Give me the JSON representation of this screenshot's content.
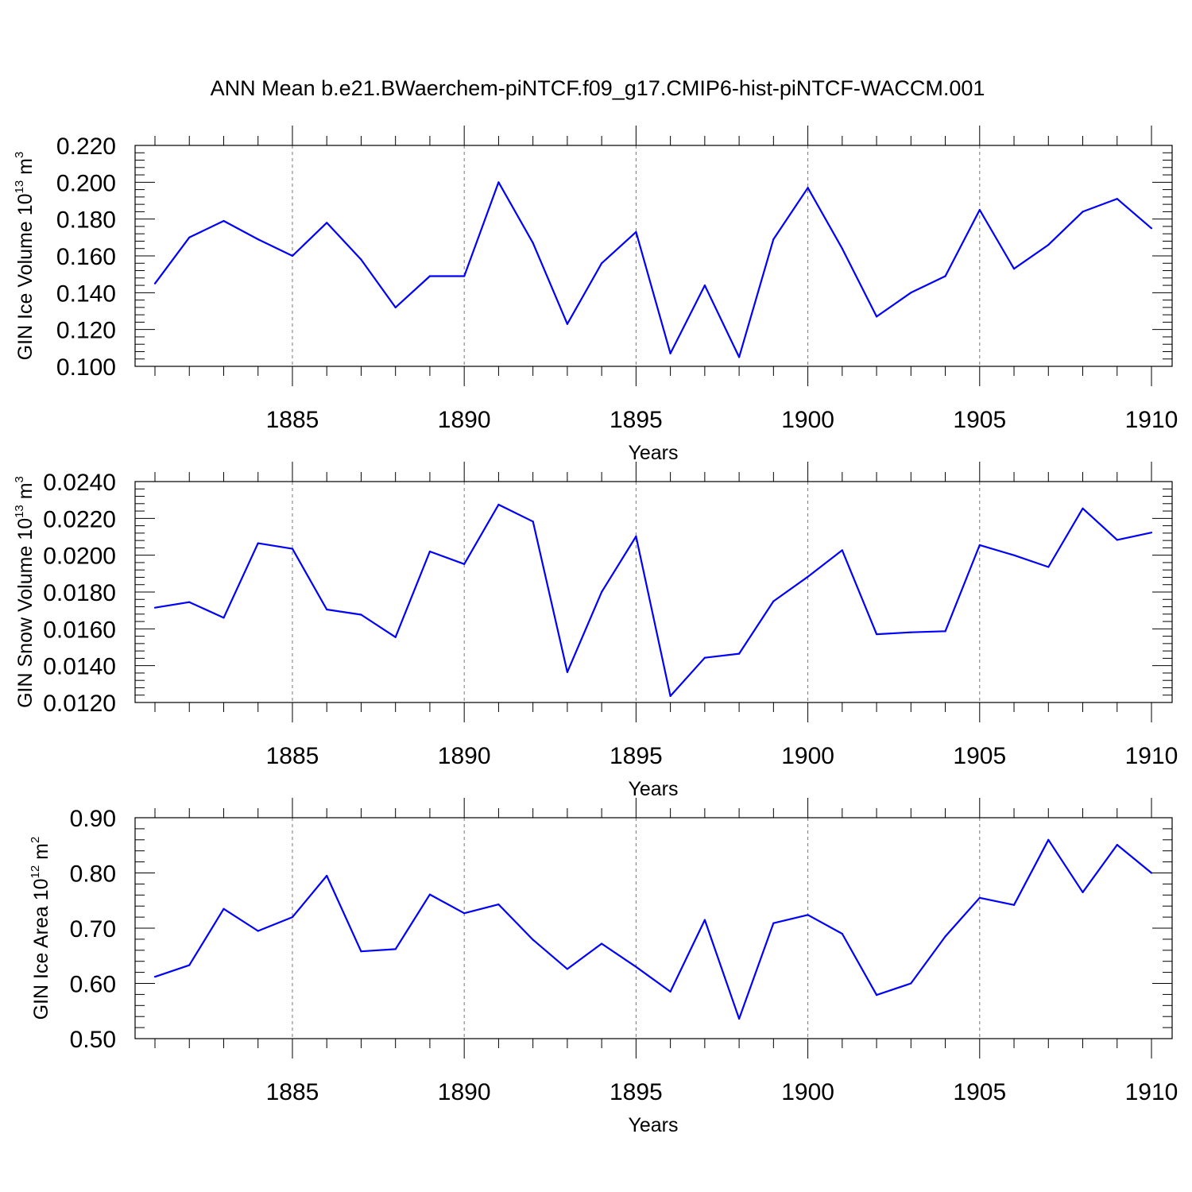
{
  "title": "ANN Mean b.e21.BWaerchem-piNTCF.f09_g17.CMIP6-hist-piNTCF-WACCM.001",
  "colors": {
    "line": "#0000ff",
    "grid": "#777777",
    "axis": "#000000"
  },
  "chart_data": [
    {
      "type": "line",
      "ylabel_text": "GIN Ice Volume 10",
      "ylabel_exp": "13",
      "ylabel_unit": " m",
      "ylabel_unit_exp": "3",
      "xlabel": "Years",
      "xlim": [
        1881,
        1910
      ],
      "ylim": [
        0.1,
        0.22
      ],
      "yticks": [
        0.1,
        0.12,
        0.14,
        0.16,
        0.18,
        0.2,
        0.22
      ],
      "ytick_labels": [
        "0.100",
        "0.120",
        "0.140",
        "0.160",
        "0.180",
        "0.200",
        "0.220"
      ],
      "xticks": [
        1885,
        1890,
        1895,
        1900,
        1905,
        1910
      ],
      "xtick_labels": [
        "1885",
        "1890",
        "1895",
        "1900",
        "1905",
        "1910"
      ],
      "grid": "vertical dashed at labeled years",
      "x": [
        1881,
        1882,
        1883,
        1884,
        1885,
        1886,
        1887,
        1888,
        1889,
        1890,
        1891,
        1892,
        1893,
        1894,
        1895,
        1896,
        1897,
        1898,
        1899,
        1900,
        1901,
        1902,
        1903,
        1904,
        1905,
        1906,
        1907,
        1908,
        1909,
        1910
      ],
      "y": [
        0.145,
        0.17,
        0.179,
        0.169,
        0.16,
        0.178,
        0.158,
        0.132,
        0.149,
        0.149,
        0.2,
        0.167,
        0.123,
        0.156,
        0.173,
        0.107,
        0.144,
        0.105,
        0.169,
        0.197,
        0.164,
        0.127,
        0.14,
        0.149,
        0.185,
        0.153,
        0.166,
        0.184,
        0.191,
        0.175
      ]
    },
    {
      "type": "line",
      "ylabel_text": "GIN Snow Volume 10",
      "ylabel_exp": "13",
      "ylabel_unit": " m",
      "ylabel_unit_exp": "3",
      "xlabel": "Years",
      "xlim": [
        1881,
        1910
      ],
      "ylim": [
        0.012,
        0.024
      ],
      "yticks": [
        0.012,
        0.014,
        0.016,
        0.018,
        0.02,
        0.022,
        0.024
      ],
      "ytick_labels": [
        "0.0120",
        "0.0140",
        "0.0160",
        "0.0180",
        "0.0200",
        "0.0220",
        "0.0240"
      ],
      "xticks": [
        1885,
        1890,
        1895,
        1900,
        1905,
        1910
      ],
      "xtick_labels": [
        "1885",
        "1890",
        "1895",
        "1900",
        "1905",
        "1910"
      ],
      "grid": "vertical dashed at labeled years",
      "x": [
        1881,
        1882,
        1883,
        1884,
        1885,
        1886,
        1887,
        1888,
        1889,
        1890,
        1891,
        1892,
        1893,
        1894,
        1895,
        1896,
        1897,
        1898,
        1899,
        1900,
        1901,
        1902,
        1903,
        1904,
        1905,
        1906,
        1907,
        1908,
        1909,
        1910
      ],
      "y": [
        0.01715,
        0.01745,
        0.0166,
        0.02065,
        0.02035,
        0.01705,
        0.01677,
        0.01555,
        0.0202,
        0.01952,
        0.02275,
        0.02183,
        0.01365,
        0.018,
        0.02102,
        0.01235,
        0.01443,
        0.01465,
        0.0175,
        0.01883,
        0.02027,
        0.01571,
        0.01581,
        0.01587,
        0.02055,
        0.02,
        0.01936,
        0.02254,
        0.02083,
        0.02123
      ]
    },
    {
      "type": "line",
      "ylabel_text": "GIN Ice Area 10",
      "ylabel_exp": "12",
      "ylabel_unit": " m",
      "ylabel_unit_exp": "2",
      "xlabel": "Years",
      "xlim": [
        1881,
        1910
      ],
      "ylim": [
        0.5,
        0.9
      ],
      "yticks": [
        0.5,
        0.6,
        0.7,
        0.8,
        0.9
      ],
      "ytick_labels": [
        "0.50",
        "0.60",
        "0.70",
        "0.80",
        "0.90"
      ],
      "xticks": [
        1885,
        1890,
        1895,
        1900,
        1905,
        1910
      ],
      "xtick_labels": [
        "1885",
        "1890",
        "1895",
        "1900",
        "1905",
        "1910"
      ],
      "grid": "vertical dashed at labeled years",
      "x": [
        1881,
        1882,
        1883,
        1884,
        1885,
        1886,
        1887,
        1888,
        1889,
        1890,
        1891,
        1892,
        1893,
        1894,
        1895,
        1896,
        1897,
        1898,
        1899,
        1900,
        1901,
        1902,
        1903,
        1904,
        1905,
        1906,
        1907,
        1908,
        1909,
        1910
      ],
      "y": [
        0.612,
        0.633,
        0.735,
        0.695,
        0.72,
        0.795,
        0.658,
        0.662,
        0.761,
        0.727,
        0.743,
        0.679,
        0.626,
        0.672,
        0.63,
        0.585,
        0.715,
        0.536,
        0.709,
        0.724,
        0.69,
        0.579,
        0.6,
        0.685,
        0.755,
        0.742,
        0.86,
        0.765,
        0.851,
        0.8
      ]
    }
  ]
}
